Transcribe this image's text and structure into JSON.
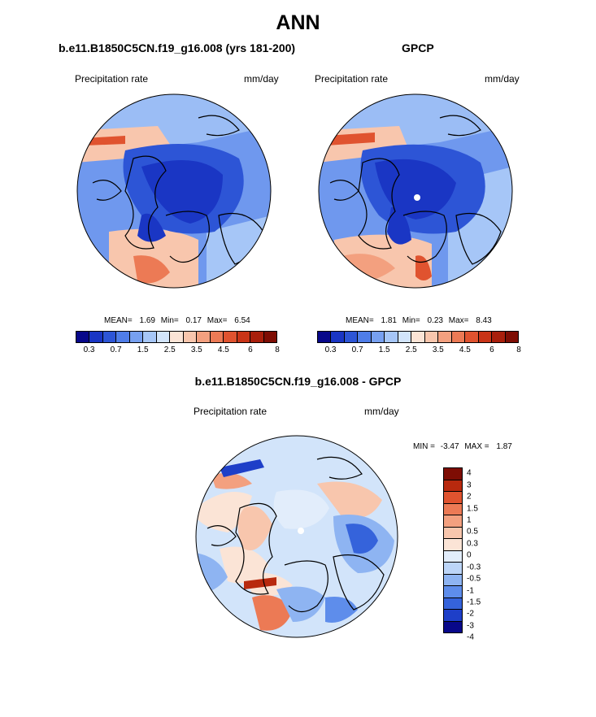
{
  "title": "ANN",
  "panels": [
    {
      "title": "b.e11.B1850C5CN.f19_g16.008 (yrs 181-200)",
      "left_label": "Precipitation rate",
      "right_label": "mm/day",
      "stats": {
        "mean_label": "MEAN=",
        "mean": "1.69",
        "min_label": "Min=",
        "min": "0.17",
        "max_label": "Max=",
        "max": "6.54"
      }
    },
    {
      "title": "GPCP",
      "left_label": "Precipitation rate",
      "right_label": "mm/day",
      "stats": {
        "mean_label": "MEAN=",
        "mean": "1.81",
        "min_label": "Min=",
        "min": "0.23",
        "max_label": "Max=",
        "max": "8.43"
      }
    },
    {
      "title": "b.e11.B1850C5CN.f19_g16.008 - GPCP",
      "left_label": "Precipitation rate",
      "right_label": "mm/day",
      "stats": {
        "min_label": "MIN =",
        "min": "-3.47",
        "max_label": "MAX =",
        "max": "1.87"
      }
    }
  ],
  "colorbar_abs": {
    "colors": [
      "#08088a",
      "#1a36c4",
      "#2d55d6",
      "#4f7de8",
      "#77a0f0",
      "#a6c6f7",
      "#d2e4fa",
      "#fbe4d6",
      "#f8c6ad",
      "#f3a07f",
      "#ec7a55",
      "#e0532f",
      "#c93417",
      "#a91f0c",
      "#7e0d04"
    ],
    "ticks": [
      "0.3",
      "0.7",
      "1.5",
      "2.5",
      "3.5",
      "4.5",
      "6",
      "8"
    ]
  },
  "colorbar_diff": {
    "colors": [
      "#7e0d04",
      "#b8290e",
      "#e0532f",
      "#ec7a55",
      "#f3a07f",
      "#f8c6ad",
      "#fbe4d6",
      "#e2edfb",
      "#bcd5f8",
      "#8eb4f2",
      "#5e8deb",
      "#3563db",
      "#1e3fc8",
      "#08088a"
    ],
    "ticks": [
      "4",
      "3",
      "2",
      "1.5",
      "1",
      "0.5",
      "0.3",
      "0",
      "-0.3",
      "-0.5",
      "-1",
      "-1.5",
      "-2",
      "-3",
      "-4"
    ]
  }
}
